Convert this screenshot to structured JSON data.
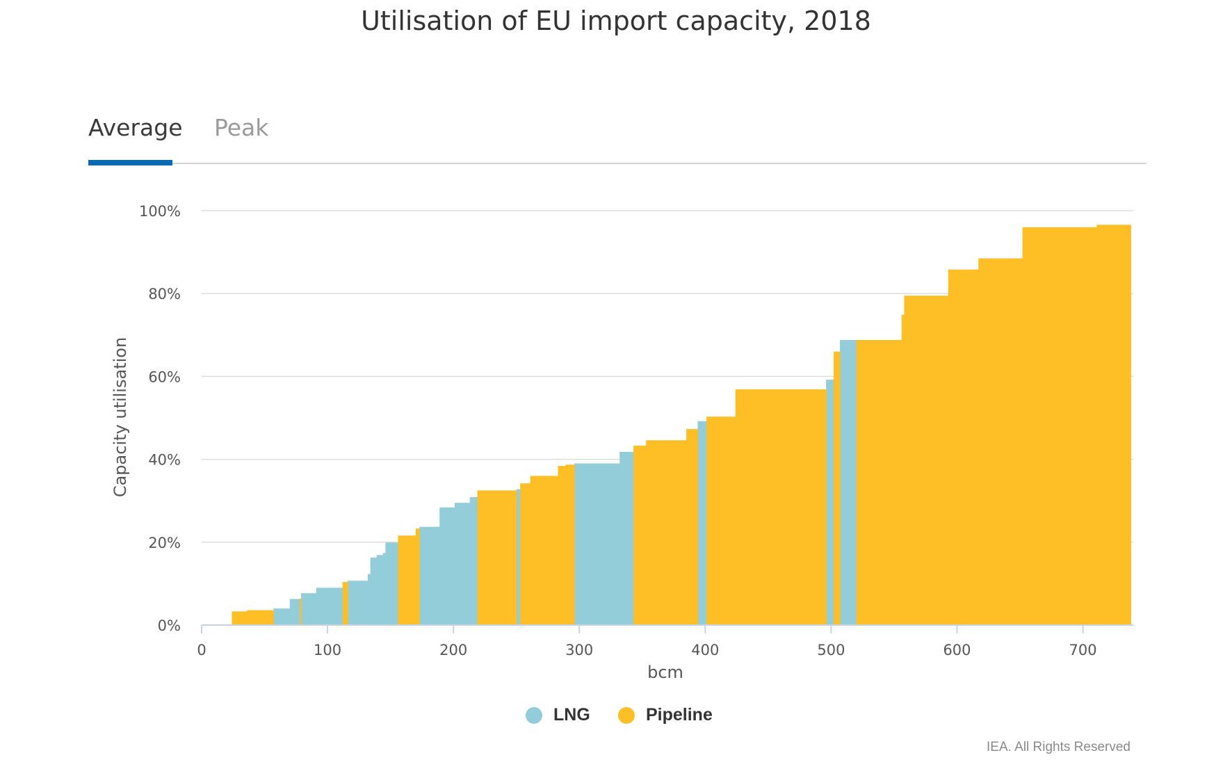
{
  "title": "Utilisation of EU import capacity, 2018",
  "tabs": [
    {
      "label": "Average",
      "active": true
    },
    {
      "label": "Peak",
      "active": false
    }
  ],
  "colors": {
    "LNG": "#92cdd9",
    "Pipeline": "#fdbe26",
    "active_tab": "#0a6ab4"
  },
  "legend": [
    {
      "label": "LNG",
      "color": "#92cdd9"
    },
    {
      "label": "Pipeline",
      "color": "#fdbe26"
    }
  ],
  "footer": "IEA. All Rights Reserved",
  "chart_data": {
    "type": "area",
    "title": "Utilisation of EU import capacity, 2018",
    "xlabel": "bcm",
    "ylabel": "Capacity utilisation",
    "xlim": [
      0,
      740
    ],
    "ylim": [
      0,
      100
    ],
    "x_ticks": [
      "0",
      "100",
      "200",
      "300",
      "400",
      "500",
      "600",
      "700"
    ],
    "y_ticks": [
      "0%",
      "20%",
      "40%",
      "60%",
      "80%",
      "100%"
    ],
    "grid": "horizontal",
    "legend_position": "bottom-center",
    "series": [
      {
        "name": "LNG",
        "type": "step",
        "segments": [
          {
            "x0": 57,
            "x1": 70,
            "y": 4.0
          },
          {
            "x0": 70,
            "x1": 79,
            "y": 6.3
          },
          {
            "x0": 79,
            "x1": 91,
            "y": 7.7
          },
          {
            "x0": 91,
            "x1": 112,
            "y": 9.0
          },
          {
            "x0": 116,
            "x1": 132,
            "y": 10.7
          },
          {
            "x0": 132,
            "x1": 134,
            "y": 12.3
          },
          {
            "x0": 134,
            "x1": 139,
            "y": 16.3
          },
          {
            "x0": 139,
            "x1": 144,
            "y": 16.9
          },
          {
            "x0": 144,
            "x1": 146,
            "y": 17.4
          },
          {
            "x0": 146,
            "x1": 156,
            "y": 19.9
          },
          {
            "x0": 173,
            "x1": 189,
            "y": 23.7
          },
          {
            "x0": 189,
            "x1": 201,
            "y": 28.4
          },
          {
            "x0": 201,
            "x1": 213,
            "y": 29.5
          },
          {
            "x0": 213,
            "x1": 219,
            "y": 30.9
          },
          {
            "x0": 250,
            "x1": 253,
            "y": 32.8
          },
          {
            "x0": 296,
            "x1": 332,
            "y": 39.0
          },
          {
            "x0": 332,
            "x1": 343,
            "y": 41.8
          },
          {
            "x0": 394,
            "x1": 401,
            "y": 49.2
          },
          {
            "x0": 496,
            "x1": 502,
            "y": 59.2
          },
          {
            "x0": 507,
            "x1": 520,
            "y": 68.8
          }
        ]
      },
      {
        "name": "Pipeline",
        "type": "step",
        "segments": [
          {
            "x0": 24,
            "x1": 36,
            "y": 3.3
          },
          {
            "x0": 36,
            "x1": 57,
            "y": 3.6
          },
          {
            "x0": 78,
            "x1": 79,
            "y": 6.4
          },
          {
            "x0": 112,
            "x1": 116,
            "y": 10.4
          },
          {
            "x0": 156,
            "x1": 170,
            "y": 21.6
          },
          {
            "x0": 170,
            "x1": 173,
            "y": 23.3
          },
          {
            "x0": 219,
            "x1": 250,
            "y": 32.5
          },
          {
            "x0": 253,
            "x1": 261,
            "y": 34.2
          },
          {
            "x0": 261,
            "x1": 283,
            "y": 36.0
          },
          {
            "x0": 283,
            "x1": 289,
            "y": 38.4
          },
          {
            "x0": 289,
            "x1": 296,
            "y": 38.7
          },
          {
            "x0": 343,
            "x1": 353,
            "y": 43.3
          },
          {
            "x0": 353,
            "x1": 385,
            "y": 44.6
          },
          {
            "x0": 385,
            "x1": 394,
            "y": 47.3
          },
          {
            "x0": 401,
            "x1": 424,
            "y": 50.3
          },
          {
            "x0": 424,
            "x1": 496,
            "y": 56.9
          },
          {
            "x0": 502,
            "x1": 507,
            "y": 66.0
          },
          {
            "x0": 520,
            "x1": 556,
            "y": 68.8
          },
          {
            "x0": 556,
            "x1": 558,
            "y": 74.9
          },
          {
            "x0": 558,
            "x1": 593,
            "y": 79.5
          },
          {
            "x0": 593,
            "x1": 617,
            "y": 85.8
          },
          {
            "x0": 617,
            "x1": 652,
            "y": 88.5
          },
          {
            "x0": 652,
            "x1": 711,
            "y": 96.0
          },
          {
            "x0": 711,
            "x1": 738,
            "y": 96.6
          }
        ]
      }
    ]
  }
}
